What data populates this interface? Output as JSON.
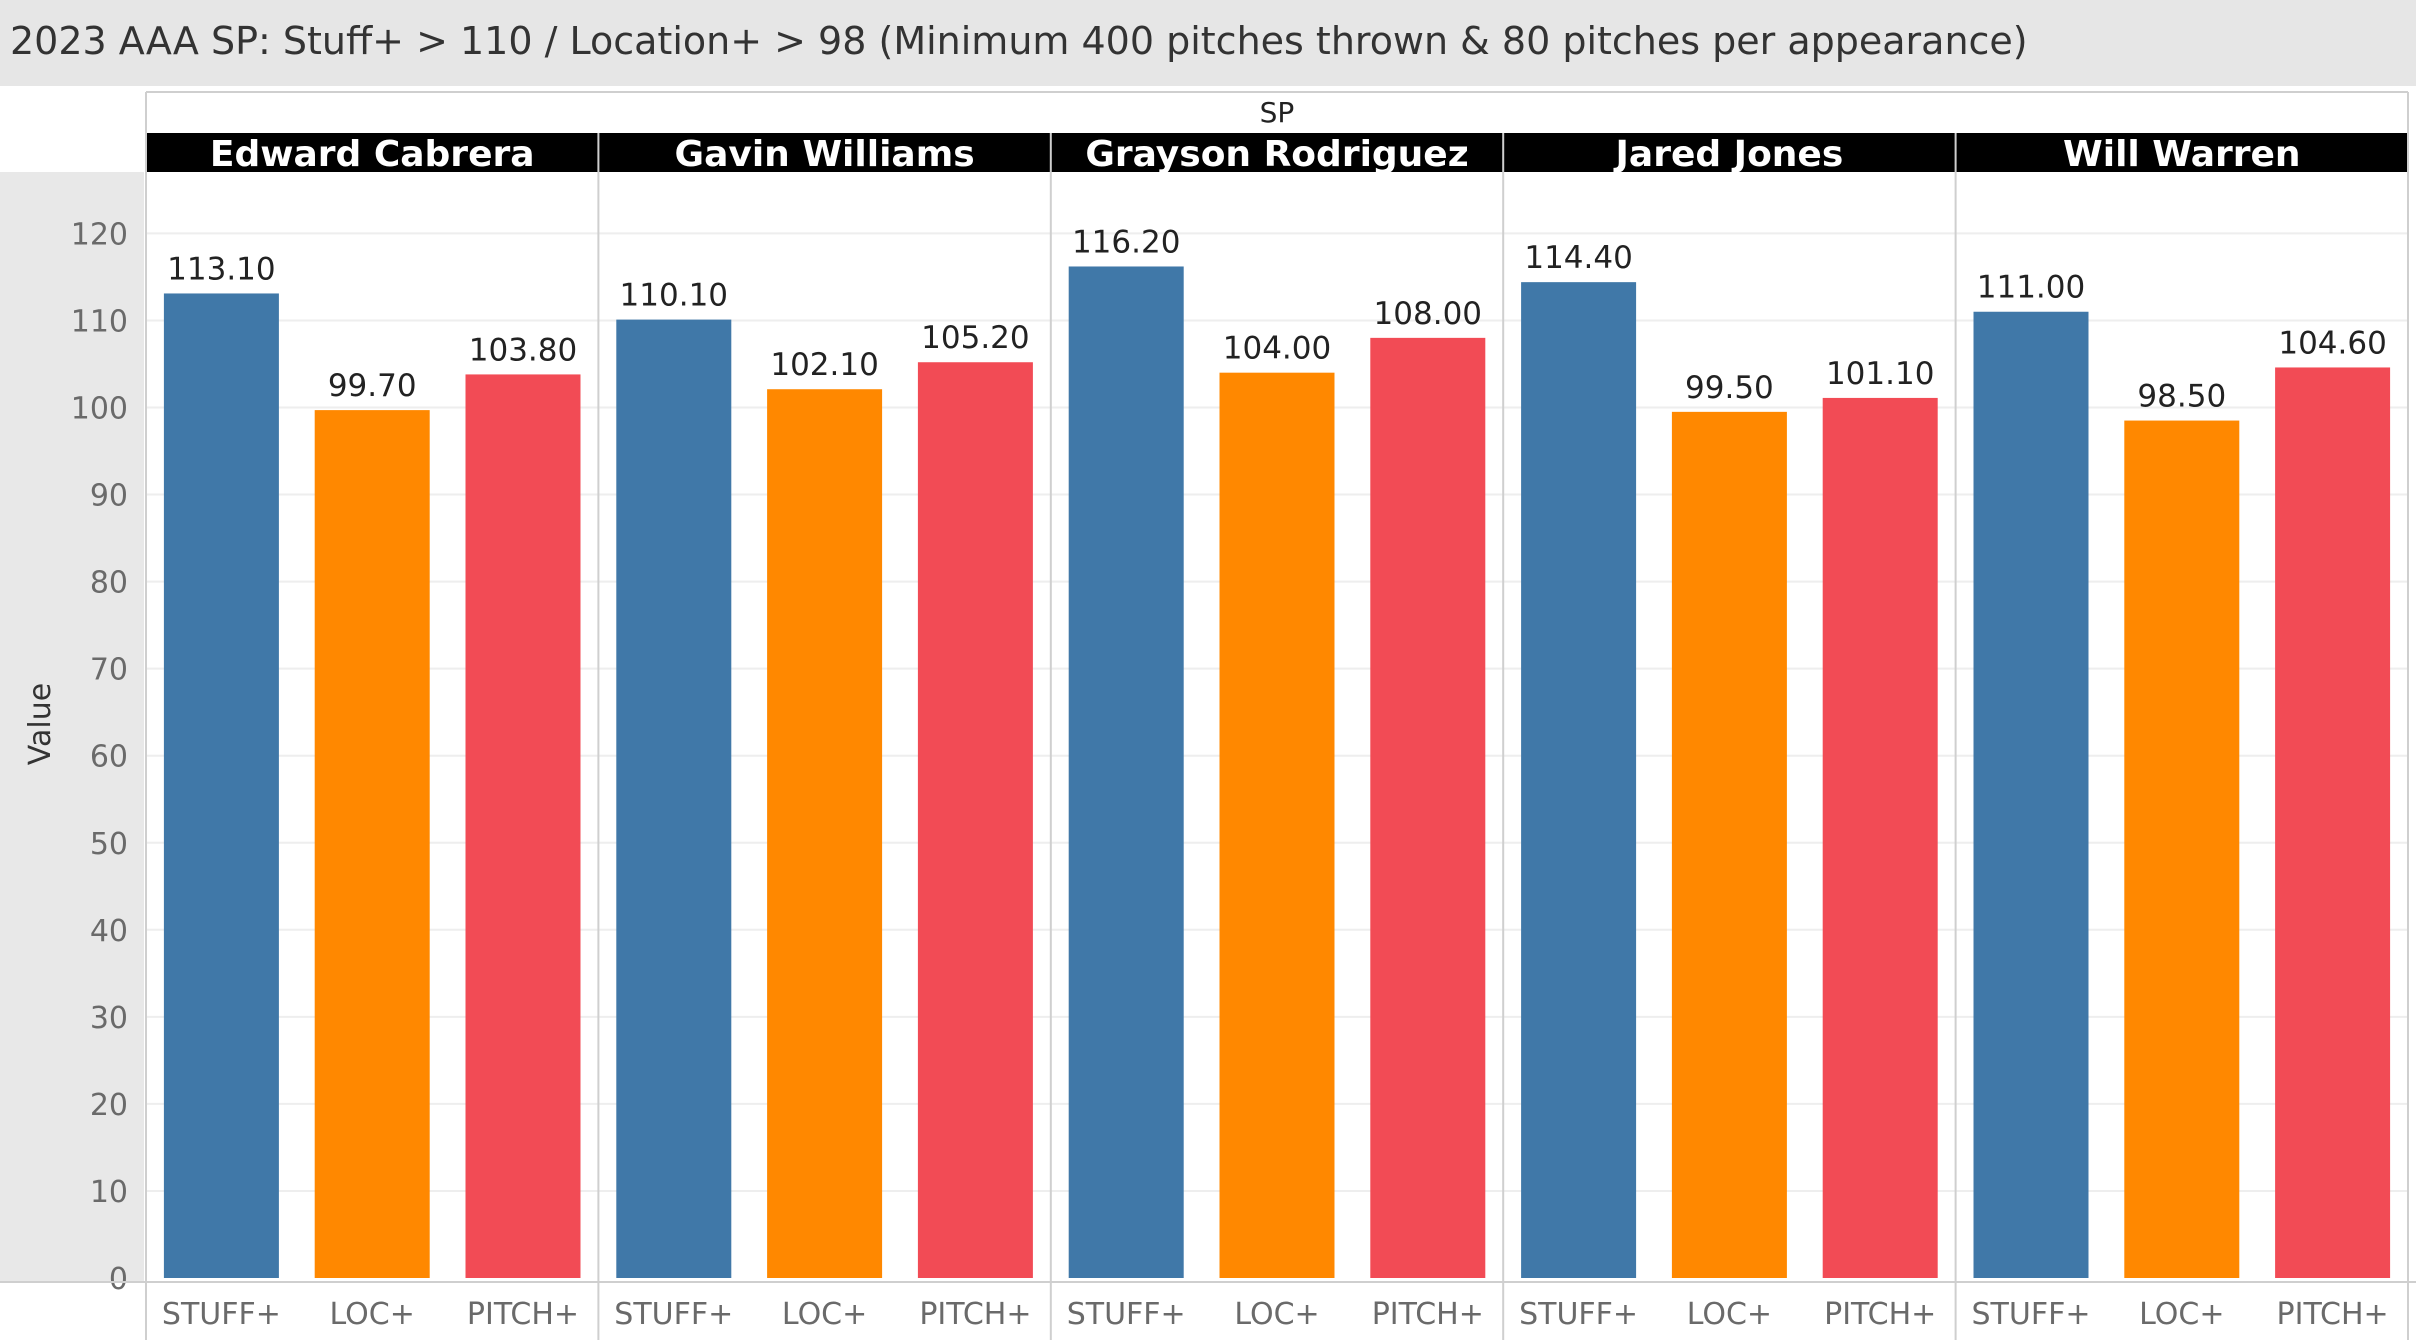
{
  "chart_data": {
    "type": "bar",
    "title": "2023 AAA SP: Stuff+ > 110 / Location+ > 98 (Minimum 400 pitches thrown & 80 pitches per appearance)",
    "facet_header": "SP",
    "ylabel": "Value",
    "ylim": [
      0,
      125
    ],
    "yticks": [
      0,
      10,
      20,
      30,
      40,
      50,
      60,
      70,
      80,
      90,
      100,
      110,
      120
    ],
    "metrics": [
      "STUFF+",
      "LOC+",
      "PITCH+"
    ],
    "colors": {
      "STUFF+": "#4078a8",
      "LOC+": "#ff8800",
      "PITCH+": "#f24b55"
    },
    "panels": [
      {
        "name": "Edward Cabrera",
        "values": [
          113.1,
          99.7,
          103.8
        ],
        "labels": [
          "113.10",
          "99.70",
          "103.80"
        ]
      },
      {
        "name": "Gavin Williams",
        "values": [
          110.1,
          102.1,
          105.2
        ],
        "labels": [
          "110.10",
          "102.10",
          "105.20"
        ]
      },
      {
        "name": "Grayson Rodriguez",
        "values": [
          116.2,
          104.0,
          108.0
        ],
        "labels": [
          "116.20",
          "104.00",
          "108.00"
        ]
      },
      {
        "name": "Jared Jones",
        "values": [
          114.4,
          99.5,
          101.1
        ],
        "labels": [
          "114.40",
          "99.50",
          "101.10"
        ]
      },
      {
        "name": "Will Warren",
        "values": [
          111.0,
          98.5,
          104.6
        ],
        "labels": [
          "111.00",
          "98.50",
          "104.60"
        ]
      }
    ]
  }
}
